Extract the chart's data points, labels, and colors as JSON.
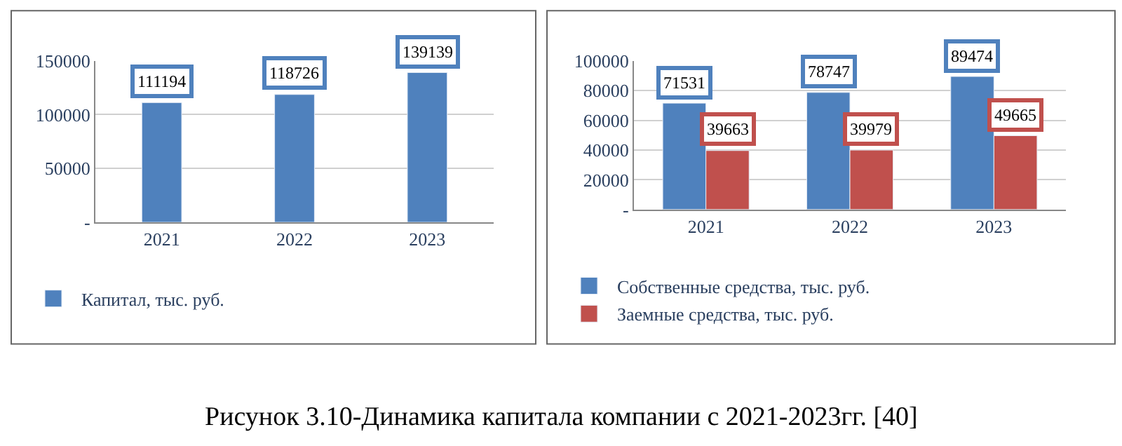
{
  "chart_data": [
    {
      "type": "bar",
      "categories": [
        "2021",
        "2022",
        "2023"
      ],
      "series": [
        {
          "name": "Капитал, тыс. руб.",
          "color": "#4f81bd",
          "values": [
            111194,
            118726,
            139139
          ]
        }
      ],
      "ylim": [
        0,
        150000
      ],
      "yticks": [
        {
          "value": 0,
          "label": "-"
        },
        50000,
        100000,
        150000
      ],
      "grid": "y",
      "legend": "bottom",
      "data_labels": true,
      "annotations": [
        "Рисунок 3.10-Динамика капитала компании с 2021-2023гг. [40]"
      ]
    },
    {
      "type": "bar",
      "categories": [
        "2021",
        "2022",
        "2023"
      ],
      "series": [
        {
          "name": "Собственные средства, тыс. руб.",
          "color": "#4f81bd",
          "values": [
            71531,
            78747,
            89474
          ]
        },
        {
          "name": "Заемные средства, тыс. руб.",
          "color": "#c0504d",
          "values": [
            39663,
            39979,
            49665
          ]
        }
      ],
      "ylim": [
        0,
        100000
      ],
      "yticks": [
        {
          "value": 0,
          "label": "-"
        },
        20000,
        40000,
        60000,
        80000,
        100000
      ],
      "grid": "y",
      "legend": "bottom",
      "data_labels": true
    }
  ]
}
